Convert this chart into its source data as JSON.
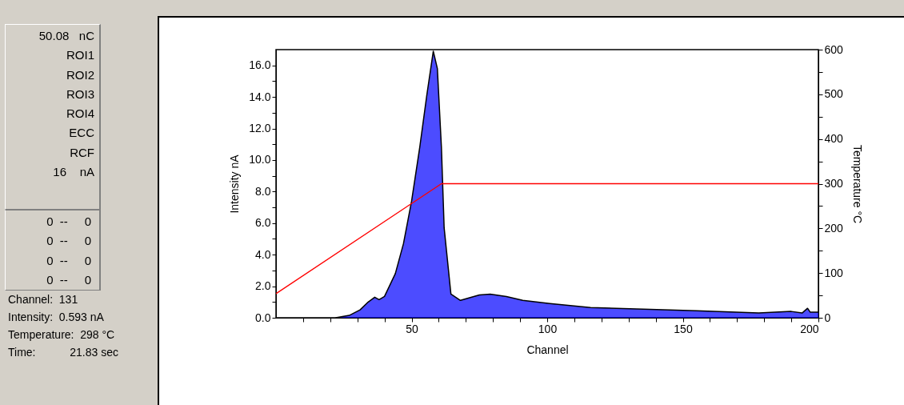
{
  "chart_data": {
    "type": "area",
    "xlabel": "Channel",
    "ylabel": "Intensity nA",
    "y2label": "Temperature °C",
    "xlim": [
      0,
      200
    ],
    "xticks": [
      {
        "value": 10,
        "label": null
      },
      {
        "value": 20,
        "label": null
      },
      {
        "value": 30,
        "label": null
      },
      {
        "value": 40,
        "label": null
      },
      50,
      {
        "value": 60,
        "label": null
      },
      {
        "value": 70,
        "label": null
      },
      {
        "value": 80,
        "label": null
      },
      {
        "value": 90,
        "label": null
      },
      100,
      {
        "value": 110,
        "label": null
      },
      {
        "value": 120,
        "label": null
      },
      {
        "value": 130,
        "label": null
      },
      {
        "value": 140,
        "label": null
      },
      150,
      {
        "value": 160,
        "label": null
      },
      {
        "value": 170,
        "label": null
      },
      {
        "value": 180,
        "label": null
      },
      {
        "value": 190,
        "label": null
      },
      200
    ],
    "ylim": [
      0,
      17
    ],
    "yticks": [
      {
        "value": 0,
        "label": "0.0"
      },
      {
        "value": 1,
        "label": null
      },
      {
        "value": 2,
        "label": "2.0"
      },
      {
        "value": 3,
        "label": null
      },
      {
        "value": 4,
        "label": "4.0"
      },
      {
        "value": 5,
        "label": null
      },
      {
        "value": 6,
        "label": "6.0"
      },
      {
        "value": 7,
        "label": null
      },
      {
        "value": 8,
        "label": "8.0"
      },
      {
        "value": 9,
        "label": null
      },
      {
        "value": 10,
        "label": "10.0"
      },
      {
        "value": 11,
        "label": null
      },
      {
        "value": 12,
        "label": "12.0"
      },
      {
        "value": 13,
        "label": null
      },
      {
        "value": 14,
        "label": "14.0"
      },
      {
        "value": 15,
        "label": null
      },
      {
        "value": 16,
        "label": "16.0"
      }
    ],
    "y2lim": [
      0,
      600
    ],
    "y2ticks": [
      0,
      {
        "value": 50,
        "label": null
      },
      100,
      {
        "value": 150,
        "label": null
      },
      200,
      {
        "value": 250,
        "label": null
      },
      300,
      {
        "value": 350,
        "label": null
      },
      400,
      {
        "value": 450,
        "label": null
      },
      500,
      {
        "value": 550,
        "label": null
      },
      600
    ],
    "grid": false,
    "series": [
      {
        "color": "#0000ff",
        "x": [
          22,
          27,
          31,
          34,
          36.4,
          38,
          40,
          44,
          47,
          50,
          53,
          55.6,
          58,
          59.5,
          61,
          62,
          64.5,
          68,
          75,
          79,
          85,
          91,
          101,
          116,
          135.5,
          155,
          178,
          190,
          194,
          196,
          197,
          200
        ],
        "values": [
          0,
          0.15,
          0.5,
          1.0,
          1.3,
          1.15,
          1.35,
          2.8,
          4.7,
          7.4,
          10.8,
          14.1,
          16.9,
          15.8,
          10.8,
          5.7,
          1.5,
          1.1,
          1.45,
          1.5,
          1.35,
          1.1,
          0.9,
          0.65,
          0.55,
          0.45,
          0.3,
          0.4,
          0.3,
          0.6,
          0.35,
          0.35
        ]
      },
      {
        "type": "line",
        "axis": "y2",
        "color": "#ff0000",
        "x": [
          0,
          61,
          200
        ],
        "values": [
          54,
          300,
          300
        ]
      }
    ],
    "annotations": [
      "50.08   nC",
      "ROI1",
      "ROI2",
      "ROI3",
      "ROI4",
      "ECC",
      "RCF",
      "16    nA",
      "0  --     0",
      "0  --     0",
      "0  --     0",
      "0  --     0",
      "Channel:  131",
      "Intensity:  0.593 nA",
      "Temperature:  298 °C",
      "Time:           21.83 sec"
    ]
  }
}
